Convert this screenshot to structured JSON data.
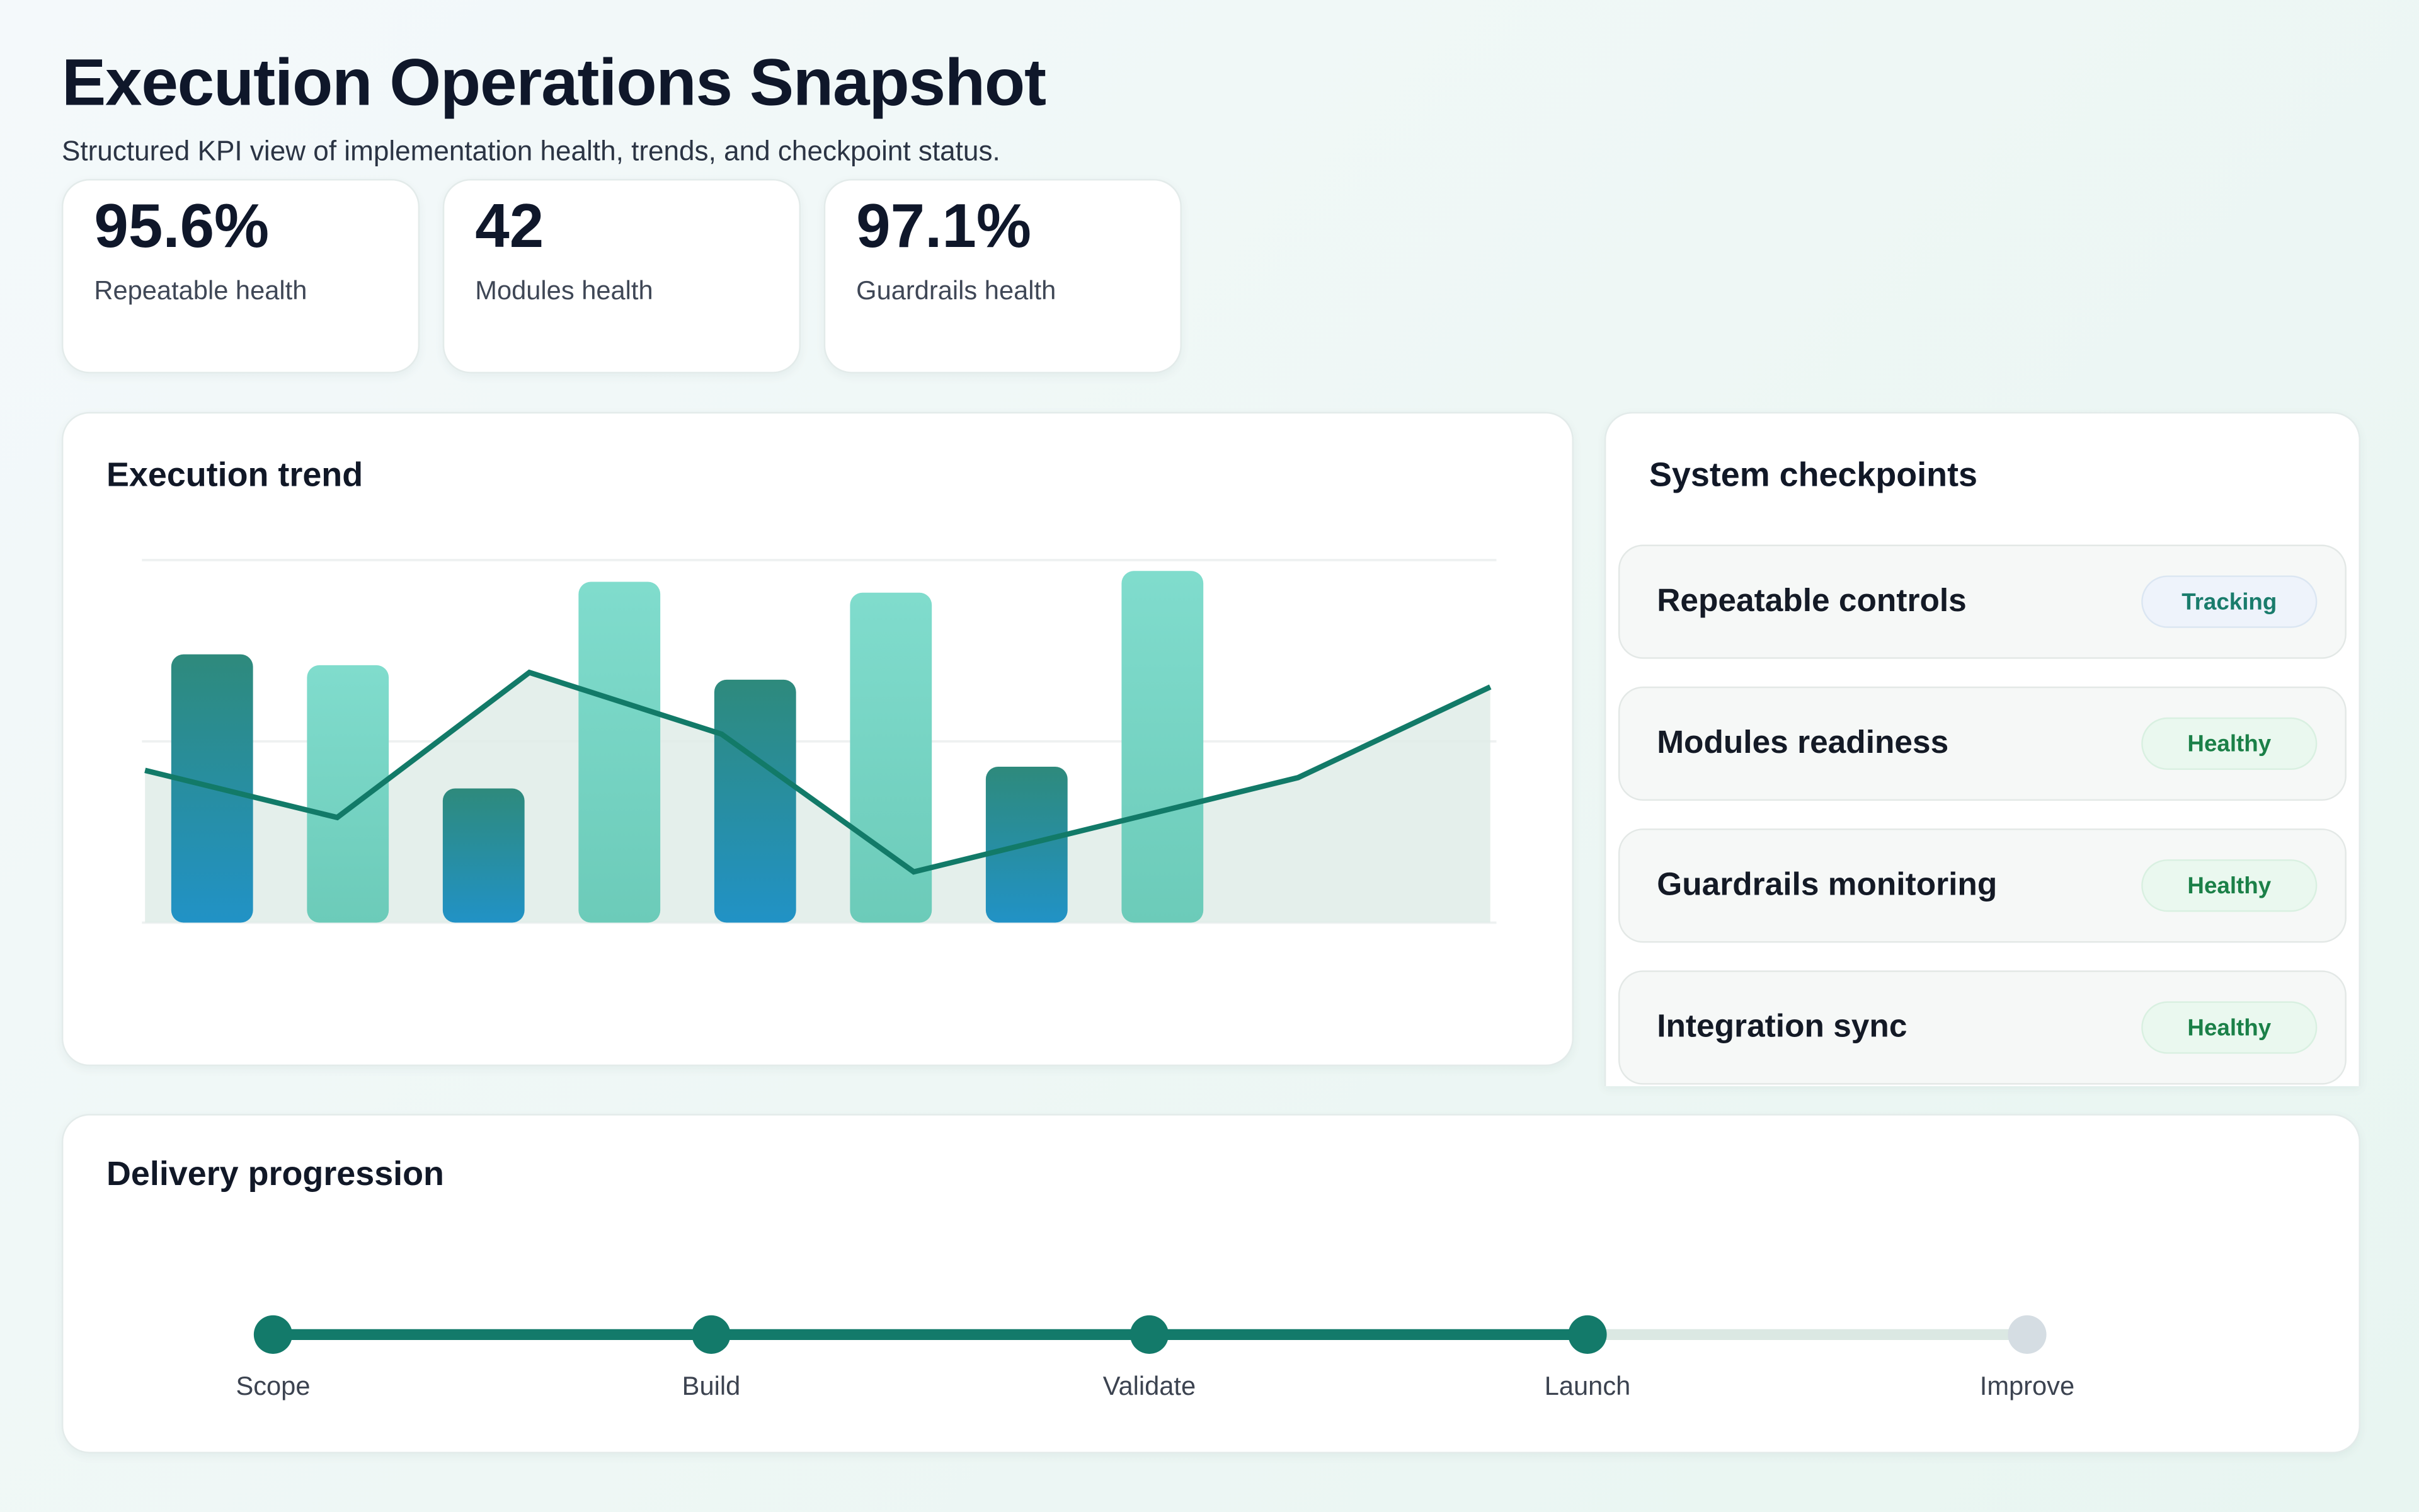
{
  "header": {
    "title": "Execution Operations Snapshot",
    "subtitle": "Structured KPI view of implementation health, trends, and checkpoint status."
  },
  "kpis": [
    {
      "value": "95.6%",
      "label": "Repeatable health"
    },
    {
      "value": "42",
      "label": "Modules health"
    },
    {
      "value": "97.1%",
      "label": "Guardrails health"
    }
  ],
  "trend": {
    "title": "Execution trend"
  },
  "chart_data": {
    "type": "bar+line",
    "title": "Execution trend",
    "ylim": [
      0,
      100
    ],
    "grid": true,
    "bars": [
      74,
      71,
      37,
      94,
      67,
      91,
      43,
      97
    ],
    "bar_colors": [
      "dark",
      "light",
      "dark",
      "light",
      "dark",
      "light",
      "dark",
      "light"
    ],
    "line": [
      42,
      29,
      69,
      52,
      14,
      27,
      40,
      65
    ],
    "colors": {
      "dark_top": "#2e8a7c",
      "dark_bottom": "#2192c6",
      "light_top": "#80dccd",
      "light_bottom": "#6ccbb9",
      "line": "#127a68",
      "area": "#dfece8"
    }
  },
  "checkpoints": {
    "title": "System checkpoints",
    "items": [
      {
        "label": "Repeatable controls",
        "status": "Tracking"
      },
      {
        "label": "Modules readiness",
        "status": "Healthy"
      },
      {
        "label": "Guardrails monitoring",
        "status": "Healthy"
      },
      {
        "label": "Integration sync",
        "status": "Healthy"
      }
    ]
  },
  "delivery": {
    "title": "Delivery progression",
    "steps": [
      "Scope",
      "Build",
      "Validate",
      "Launch",
      "Improve"
    ],
    "completed_steps": 4,
    "colors": {
      "done": "#137a6a",
      "pending": "#d5dde3",
      "track_pending": "#dbe8e3"
    }
  }
}
